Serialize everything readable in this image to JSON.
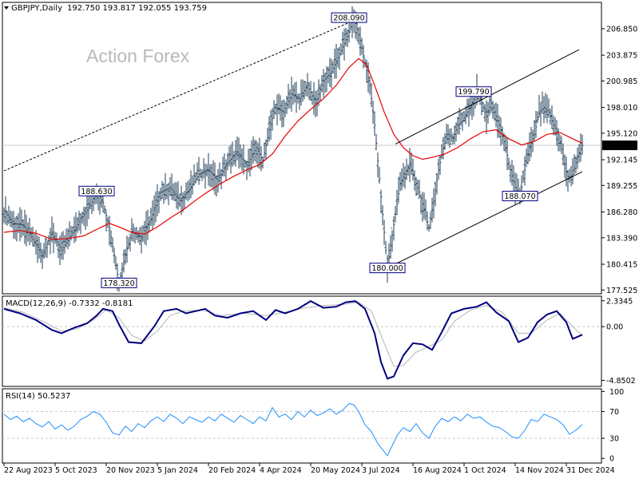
{
  "chart_data": {
    "type": "line",
    "title": "GBPJPY,Daily",
    "ohlc": "192.750 193.817 192.055 193.759",
    "watermark": "Action Forex",
    "current_price": "193.759",
    "price_axis": {
      "ticks": [
        "206.850",
        "203.875",
        "200.985",
        "198.010",
        "195.120",
        "192.145",
        "189.255",
        "186.280",
        "183.390",
        "180.415",
        "177.525"
      ],
      "values": [
        206.85,
        203.875,
        200.985,
        198.01,
        195.12,
        192.145,
        189.255,
        186.28,
        183.39,
        180.415,
        177.525
      ],
      "range": [
        177.1,
        209.8
      ]
    },
    "x_ticks": [
      "22 Aug 2023",
      "5 Oct 2023",
      "20 Nov 2023",
      "5 Jan 2024",
      "20 Feb 2024",
      "4 Apr 2024",
      "20 May 2024",
      "3 Jul 2024",
      "16 Aug 2024",
      "1 Oct 2024",
      "14 Nov 2024",
      "31 Dec 2024"
    ],
    "x_tick_bars": [
      0,
      32,
      64,
      96,
      128,
      160,
      192,
      224,
      256,
      288,
      320,
      352
    ],
    "total_bars": 368,
    "price_series": [
      [
        0,
        186.4
      ],
      [
        6,
        185.0
      ],
      [
        12,
        184.8
      ],
      [
        18,
        183.2
      ],
      [
        24,
        181.5
      ],
      [
        30,
        183.8
      ],
      [
        36,
        182.0
      ],
      [
        42,
        183.6
      ],
      [
        48,
        185.5
      ],
      [
        54,
        187.0
      ],
      [
        58,
        188.6
      ],
      [
        62,
        187.3
      ],
      [
        66,
        184.5
      ],
      [
        70,
        180.3
      ],
      [
        72,
        178.3
      ],
      [
        76,
        181.5
      ],
      [
        80,
        184.0
      ],
      [
        86,
        183.5
      ],
      [
        92,
        185.5
      ],
      [
        98,
        188.5
      ],
      [
        104,
        189.0
      ],
      [
        110,
        187.6
      ],
      [
        116,
        188.8
      ],
      [
        122,
        190.5
      ],
      [
        128,
        191.0
      ],
      [
        134,
        189.8
      ],
      [
        140,
        191.8
      ],
      [
        146,
        193.0
      ],
      [
        152,
        191.5
      ],
      [
        158,
        193.5
      ],
      [
        162,
        192.0
      ],
      [
        166,
        195.5
      ],
      [
        170,
        198.0
      ],
      [
        175,
        197.5
      ],
      [
        180,
        199.5
      ],
      [
        185,
        199.0
      ],
      [
        190,
        200.5
      ],
      [
        195,
        198.5
      ],
      [
        200,
        201.0
      ],
      [
        205,
        202.0
      ],
      [
        210,
        204.0
      ],
      [
        215,
        206.0
      ],
      [
        219,
        208.09
      ],
      [
        223,
        205.5
      ],
      [
        226,
        203.0
      ],
      [
        229,
        200.5
      ],
      [
        232,
        196.0
      ],
      [
        235,
        190.0
      ],
      [
        238,
        184.0
      ],
      [
        240,
        180.0
      ],
      [
        242,
        182.5
      ],
      [
        245,
        186.0
      ],
      [
        248,
        189.5
      ],
      [
        251,
        190.5
      ],
      [
        254,
        191.5
      ],
      [
        257,
        190.0
      ],
      [
        260,
        188.5
      ],
      [
        263,
        186.5
      ],
      [
        266,
        184.5
      ],
      [
        269,
        187.5
      ],
      [
        272,
        191.0
      ],
      [
        275,
        193.5
      ],
      [
        278,
        195.0
      ],
      [
        281,
        194.5
      ],
      [
        284,
        196.0
      ],
      [
        287,
        196.5
      ],
      [
        290,
        197.5
      ],
      [
        293,
        198.5
      ],
      [
        296,
        199.79
      ],
      [
        299,
        198.5
      ],
      [
        302,
        197.0
      ],
      [
        305,
        198.5
      ],
      [
        308,
        197.0
      ],
      [
        311,
        195.5
      ],
      [
        314,
        193.5
      ],
      [
        317,
        191.0
      ],
      [
        320,
        189.0
      ],
      [
        323,
        188.07
      ],
      [
        326,
        191.0
      ],
      [
        329,
        193.5
      ],
      [
        332,
        195.0
      ],
      [
        335,
        197.5
      ],
      [
        338,
        198.0
      ],
      [
        341,
        197.5
      ],
      [
        344,
        196.0
      ],
      [
        347,
        195.0
      ],
      [
        350,
        192.5
      ],
      [
        353,
        190.0
      ],
      [
        356,
        190.5
      ],
      [
        359,
        192.5
      ],
      [
        362,
        193.76
      ]
    ],
    "ma_series": [
      [
        0,
        184.0
      ],
      [
        10,
        184.2
      ],
      [
        20,
        183.9
      ],
      [
        30,
        183.2
      ],
      [
        40,
        183.3
      ],
      [
        50,
        183.6
      ],
      [
        60,
        184.5
      ],
      [
        66,
        185.0
      ],
      [
        72,
        184.6
      ],
      [
        80,
        184.0
      ],
      [
        88,
        183.8
      ],
      [
        96,
        184.6
      ],
      [
        104,
        185.6
      ],
      [
        112,
        186.5
      ],
      [
        120,
        187.6
      ],
      [
        128,
        188.6
      ],
      [
        136,
        189.5
      ],
      [
        144,
        190.3
      ],
      [
        152,
        191.0
      ],
      [
        160,
        191.6
      ],
      [
        168,
        192.8
      ],
      [
        176,
        194.8
      ],
      [
        184,
        196.5
      ],
      [
        192,
        197.8
      ],
      [
        200,
        199.0
      ],
      [
        208,
        200.5
      ],
      [
        216,
        202.5
      ],
      [
        222,
        203.5
      ],
      [
        227,
        202.8
      ],
      [
        232,
        200.5
      ],
      [
        238,
        197.5
      ],
      [
        244,
        195.0
      ],
      [
        250,
        193.5
      ],
      [
        256,
        192.6
      ],
      [
        262,
        192.2
      ],
      [
        268,
        192.4
      ],
      [
        276,
        192.8
      ],
      [
        284,
        193.5
      ],
      [
        292,
        194.5
      ],
      [
        300,
        195.3
      ],
      [
        308,
        195.5
      ],
      [
        316,
        194.5
      ],
      [
        324,
        193.8
      ],
      [
        332,
        194.2
      ],
      [
        340,
        195.0
      ],
      [
        348,
        195.2
      ],
      [
        356,
        194.5
      ],
      [
        362,
        194.0
      ]
    ],
    "annotations": [
      {
        "label": "208.090",
        "bar": 216,
        "price": 208.09
      },
      {
        "label": "199.790",
        "bar": 294,
        "price": 199.79
      },
      {
        "label": "188.630",
        "bar": 58,
        "price": 188.63
      },
      {
        "label": "178.320",
        "bar": 72,
        "price": 178.32
      },
      {
        "label": "188.070",
        "bar": 323,
        "price": 188.07
      },
      {
        "label": "180.000",
        "bar": 240,
        "price": 180.0
      }
    ],
    "trendlines": [
      {
        "style": "dotted",
        "from": [
          0,
          190.9
        ],
        "to": [
          222,
          208.0
        ]
      },
      {
        "style": "solid",
        "from": [
          245,
          193.9
        ],
        "to": [
          360,
          204.5
        ]
      },
      {
        "style": "solid",
        "from": [
          240,
          180.0
        ],
        "to": [
          362,
          190.8
        ]
      }
    ],
    "macd": {
      "label": "MACD(12,26,9) -0.7332 -0.8181",
      "ticks": [
        "2.3345",
        "0.00",
        "-4.8502"
      ],
      "values": [
        2.3345,
        0.0,
        -4.8502
      ],
      "range": [
        -5.4,
        2.75
      ],
      "series": [
        [
          0,
          1.6
        ],
        [
          10,
          1.2
        ],
        [
          20,
          0.6
        ],
        [
          30,
          -0.3
        ],
        [
          36,
          -0.6
        ],
        [
          44,
          -0.1
        ],
        [
          52,
          0.3
        ],
        [
          58,
          1.0
        ],
        [
          62,
          1.6
        ],
        [
          68,
          1.4
        ],
        [
          72,
          0.2
        ],
        [
          78,
          -1.4
        ],
        [
          86,
          -1.5
        ],
        [
          94,
          0.0
        ],
        [
          100,
          1.4
        ],
        [
          108,
          1.6
        ],
        [
          114,
          1.2
        ],
        [
          120,
          1.4
        ],
        [
          126,
          1.6
        ],
        [
          132,
          1.0
        ],
        [
          140,
          0.8
        ],
        [
          148,
          1.2
        ],
        [
          156,
          1.4
        ],
        [
          164,
          0.6
        ],
        [
          170,
          1.5
        ],
        [
          176,
          1.2
        ],
        [
          184,
          1.6
        ],
        [
          192,
          2.3
        ],
        [
          200,
          1.7
        ],
        [
          208,
          1.8
        ],
        [
          214,
          2.2
        ],
        [
          220,
          2.3
        ],
        [
          226,
          1.6
        ],
        [
          232,
          -0.6
        ],
        [
          236,
          -3.2
        ],
        [
          240,
          -4.7
        ],
        [
          244,
          -4.5
        ],
        [
          250,
          -2.6
        ],
        [
          256,
          -1.5
        ],
        [
          262,
          -1.6
        ],
        [
          268,
          -2.1
        ],
        [
          274,
          -0.5
        ],
        [
          280,
          1.2
        ],
        [
          288,
          1.6
        ],
        [
          296,
          1.8
        ],
        [
          302,
          2.2
        ],
        [
          308,
          1.3
        ],
        [
          316,
          0.5
        ],
        [
          322,
          -1.4
        ],
        [
          328,
          -1.0
        ],
        [
          334,
          0.4
        ],
        [
          340,
          1.1
        ],
        [
          346,
          1.4
        ],
        [
          352,
          0.4
        ],
        [
          356,
          -1.1
        ],
        [
          362,
          -0.73
        ]
      ],
      "signal": [
        [
          0,
          1.7
        ],
        [
          12,
          1.3
        ],
        [
          24,
          0.5
        ],
        [
          36,
          -0.4
        ],
        [
          46,
          -0.2
        ],
        [
          56,
          0.6
        ],
        [
          64,
          1.5
        ],
        [
          72,
          0.8
        ],
        [
          80,
          -0.8
        ],
        [
          88,
          -1.3
        ],
        [
          96,
          -0.4
        ],
        [
          104,
          1.0
        ],
        [
          112,
          1.4
        ],
        [
          124,
          1.5
        ],
        [
          136,
          1.0
        ],
        [
          150,
          1.2
        ],
        [
          164,
          1.0
        ],
        [
          176,
          1.3
        ],
        [
          188,
          1.7
        ],
        [
          200,
          1.9
        ],
        [
          212,
          2.0
        ],
        [
          222,
          2.2
        ],
        [
          230,
          1.4
        ],
        [
          238,
          -1.5
        ],
        [
          244,
          -3.6
        ],
        [
          250,
          -3.5
        ],
        [
          258,
          -2.3
        ],
        [
          266,
          -1.8
        ],
        [
          274,
          -1.2
        ],
        [
          282,
          0.5
        ],
        [
          292,
          1.5
        ],
        [
          302,
          1.9
        ],
        [
          312,
          1.3
        ],
        [
          322,
          -0.6
        ],
        [
          330,
          -0.6
        ],
        [
          340,
          0.6
        ],
        [
          348,
          1.2
        ],
        [
          356,
          0.0
        ],
        [
          362,
          -0.82
        ]
      ]
    },
    "rsi": {
      "label": "RSI(14) 50.5237",
      "ticks": [
        "100",
        "70",
        "30",
        "0"
      ],
      "values": [
        100,
        70,
        30,
        0
      ],
      "range": [
        -7,
        104
      ],
      "series": [
        [
          0,
          66
        ],
        [
          4,
          58
        ],
        [
          8,
          63
        ],
        [
          12,
          55
        ],
        [
          16,
          60
        ],
        [
          20,
          52
        ],
        [
          24,
          47
        ],
        [
          28,
          55
        ],
        [
          32,
          44
        ],
        [
          36,
          50
        ],
        [
          40,
          42
        ],
        [
          44,
          48
        ],
        [
          48,
          58
        ],
        [
          52,
          63
        ],
        [
          56,
          70
        ],
        [
          60,
          66
        ],
        [
          64,
          54
        ],
        [
          68,
          38
        ],
        [
          72,
          35
        ],
        [
          76,
          48
        ],
        [
          80,
          40
        ],
        [
          84,
          52
        ],
        [
          88,
          46
        ],
        [
          92,
          56
        ],
        [
          96,
          62
        ],
        [
          100,
          55
        ],
        [
          104,
          66
        ],
        [
          108,
          60
        ],
        [
          112,
          52
        ],
        [
          116,
          62
        ],
        [
          120,
          58
        ],
        [
          124,
          54
        ],
        [
          128,
          62
        ],
        [
          132,
          56
        ],
        [
          136,
          66
        ],
        [
          140,
          60
        ],
        [
          144,
          54
        ],
        [
          148,
          64
        ],
        [
          152,
          58
        ],
        [
          156,
          52
        ],
        [
          160,
          62
        ],
        [
          164,
          56
        ],
        [
          168,
          76
        ],
        [
          172,
          62
        ],
        [
          176,
          66
        ],
        [
          180,
          58
        ],
        [
          184,
          70
        ],
        [
          188,
          62
        ],
        [
          192,
          72
        ],
        [
          196,
          64
        ],
        [
          200,
          68
        ],
        [
          204,
          74
        ],
        [
          208,
          66
        ],
        [
          212,
          72
        ],
        [
          216,
          82
        ],
        [
          219,
          80
        ],
        [
          222,
          70
        ],
        [
          226,
          50
        ],
        [
          230,
          40
        ],
        [
          234,
          22
        ],
        [
          238,
          10
        ],
        [
          240,
          4
        ],
        [
          242,
          14
        ],
        [
          246,
          34
        ],
        [
          250,
          46
        ],
        [
          254,
          40
        ],
        [
          258,
          52
        ],
        [
          262,
          38
        ],
        [
          266,
          30
        ],
        [
          270,
          48
        ],
        [
          274,
          60
        ],
        [
          278,
          55
        ],
        [
          282,
          62
        ],
        [
          286,
          56
        ],
        [
          290,
          66
        ],
        [
          294,
          60
        ],
        [
          298,
          62
        ],
        [
          302,
          54
        ],
        [
          306,
          48
        ],
        [
          310,
          46
        ],
        [
          314,
          40
        ],
        [
          318,
          32
        ],
        [
          322,
          30
        ],
        [
          326,
          42
        ],
        [
          330,
          58
        ],
        [
          334,
          55
        ],
        [
          338,
          66
        ],
        [
          342,
          62
        ],
        [
          346,
          58
        ],
        [
          350,
          50
        ],
        [
          354,
          36
        ],
        [
          358,
          42
        ],
        [
          362,
          50.5
        ]
      ],
      "levels": [
        70,
        30
      ]
    },
    "colors": {
      "price": "#1f3d57",
      "ma": "#e60000",
      "macd": "#000080",
      "signal": "#b5b5b5",
      "rsi": "#1e90ff",
      "grid": "#c8c8c8"
    }
  }
}
